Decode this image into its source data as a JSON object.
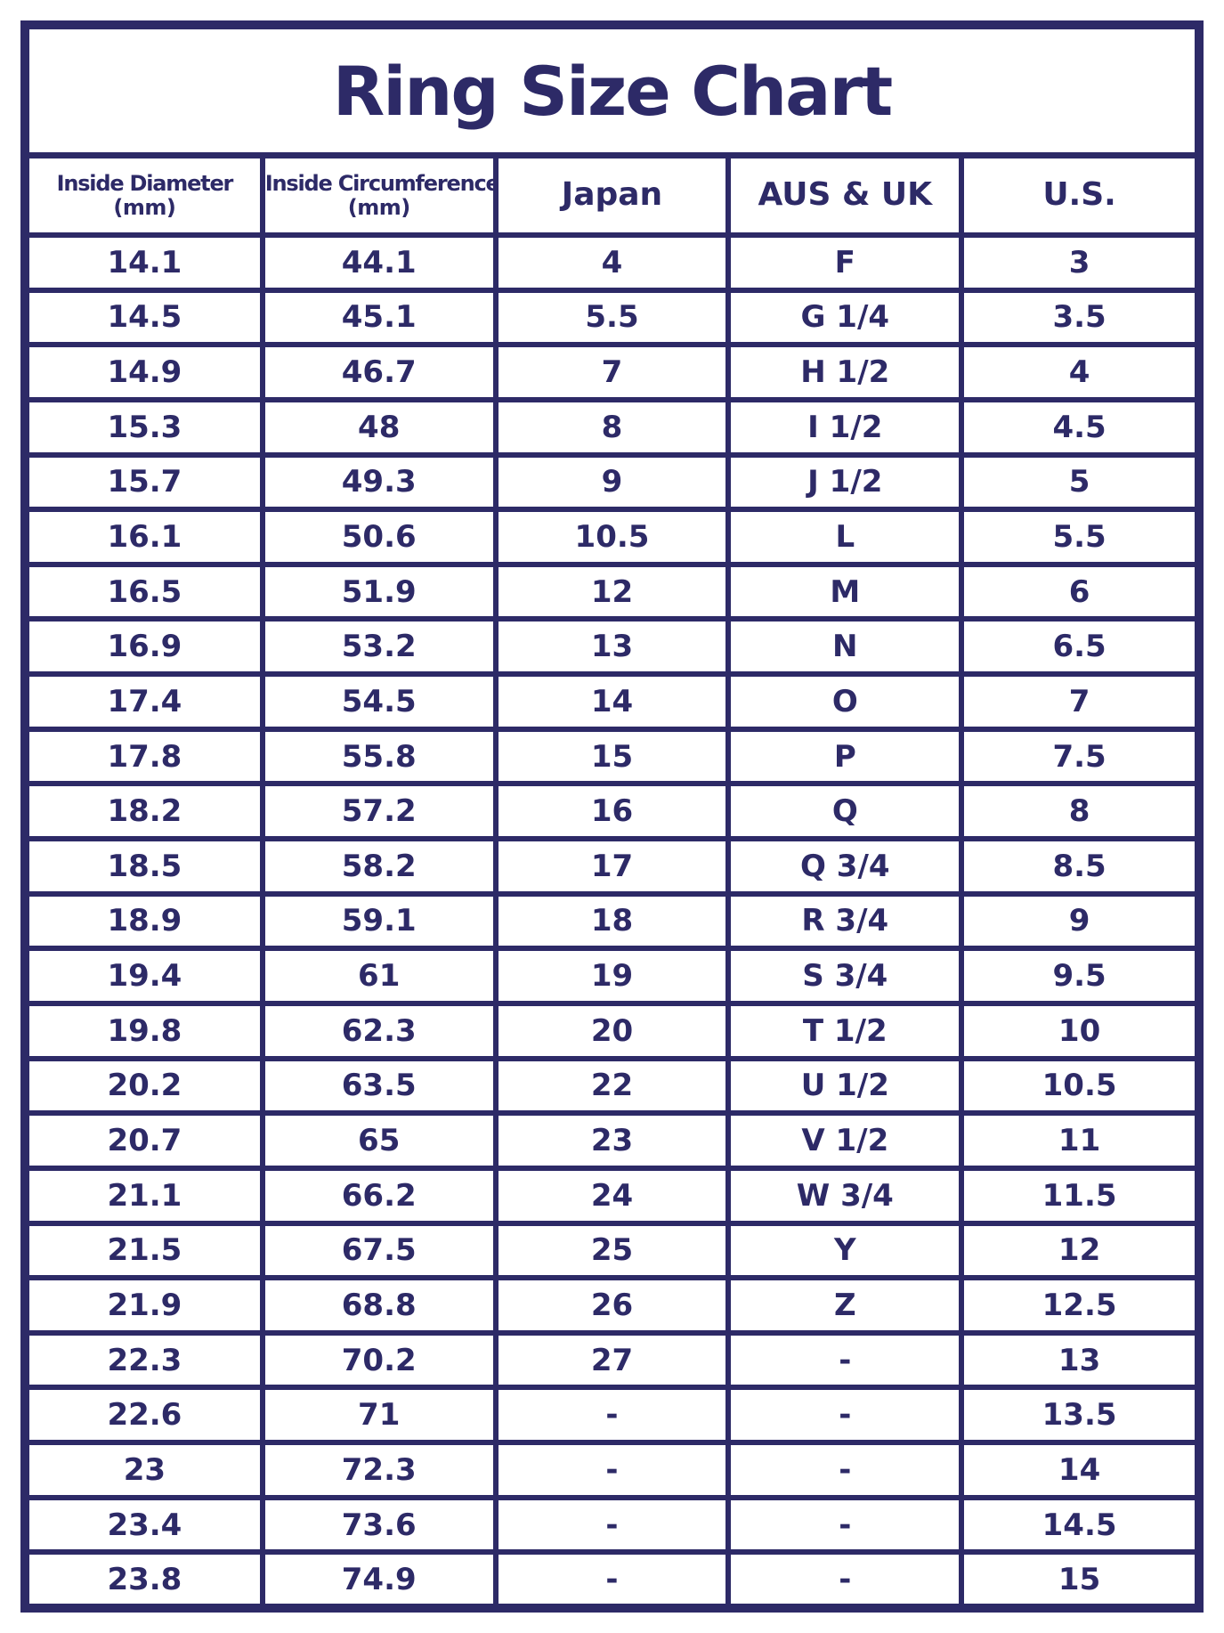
{
  "title": "Ring Size Chart",
  "colors": {
    "navy": "#2d2a67",
    "background": "#ffffff"
  },
  "chart_data": {
    "type": "table",
    "title": "Ring Size Chart",
    "columns": [
      {
        "label": "Inside Diameter",
        "sub": "(mm)",
        "style": "small"
      },
      {
        "label": "Inside Circumference",
        "sub": "(mm)",
        "style": "small"
      },
      {
        "label": "Japan",
        "sub": "",
        "style": "big"
      },
      {
        "label": "AUS & UK",
        "sub": "",
        "style": "big"
      },
      {
        "label": "U.S.",
        "sub": "",
        "style": "big"
      }
    ],
    "rows": [
      [
        "14.1",
        "44.1",
        "4",
        "F",
        "3"
      ],
      [
        "14.5",
        "45.1",
        "5.5",
        "G 1/4",
        "3.5"
      ],
      [
        "14.9",
        "46.7",
        "7",
        "H 1/2",
        "4"
      ],
      [
        "15.3",
        "48",
        "8",
        "I 1/2",
        "4.5"
      ],
      [
        "15.7",
        "49.3",
        "9",
        "J 1/2",
        "5"
      ],
      [
        "16.1",
        "50.6",
        "10.5",
        "L",
        "5.5"
      ],
      [
        "16.5",
        "51.9",
        "12",
        "M",
        "6"
      ],
      [
        "16.9",
        "53.2",
        "13",
        "N",
        "6.5"
      ],
      [
        "17.4",
        "54.5",
        "14",
        "O",
        "7"
      ],
      [
        "17.8",
        "55.8",
        "15",
        "P",
        "7.5"
      ],
      [
        "18.2",
        "57.2",
        "16",
        "Q",
        "8"
      ],
      [
        "18.5",
        "58.2",
        "17",
        "Q 3/4",
        "8.5"
      ],
      [
        "18.9",
        "59.1",
        "18",
        "R 3/4",
        "9"
      ],
      [
        "19.4",
        "61",
        "19",
        "S 3/4",
        "9.5"
      ],
      [
        "19.8",
        "62.3",
        "20",
        "T 1/2",
        "10"
      ],
      [
        "20.2",
        "63.5",
        "22",
        "U 1/2",
        "10.5"
      ],
      [
        "20.7",
        "65",
        "23",
        "V 1/2",
        "11"
      ],
      [
        "21.1",
        "66.2",
        "24",
        "W 3/4",
        "11.5"
      ],
      [
        "21.5",
        "67.5",
        "25",
        "Y",
        "12"
      ],
      [
        "21.9",
        "68.8",
        "26",
        "Z",
        "12.5"
      ],
      [
        "22.3",
        "70.2",
        "27",
        "-",
        "13"
      ],
      [
        "22.6",
        "71",
        "-",
        "-",
        "13.5"
      ],
      [
        "23",
        "72.3",
        "-",
        "-",
        "14"
      ],
      [
        "23.4",
        "73.6",
        "-",
        "-",
        "14.5"
      ],
      [
        "23.8",
        "74.9",
        "-",
        "-",
        "15"
      ]
    ]
  }
}
